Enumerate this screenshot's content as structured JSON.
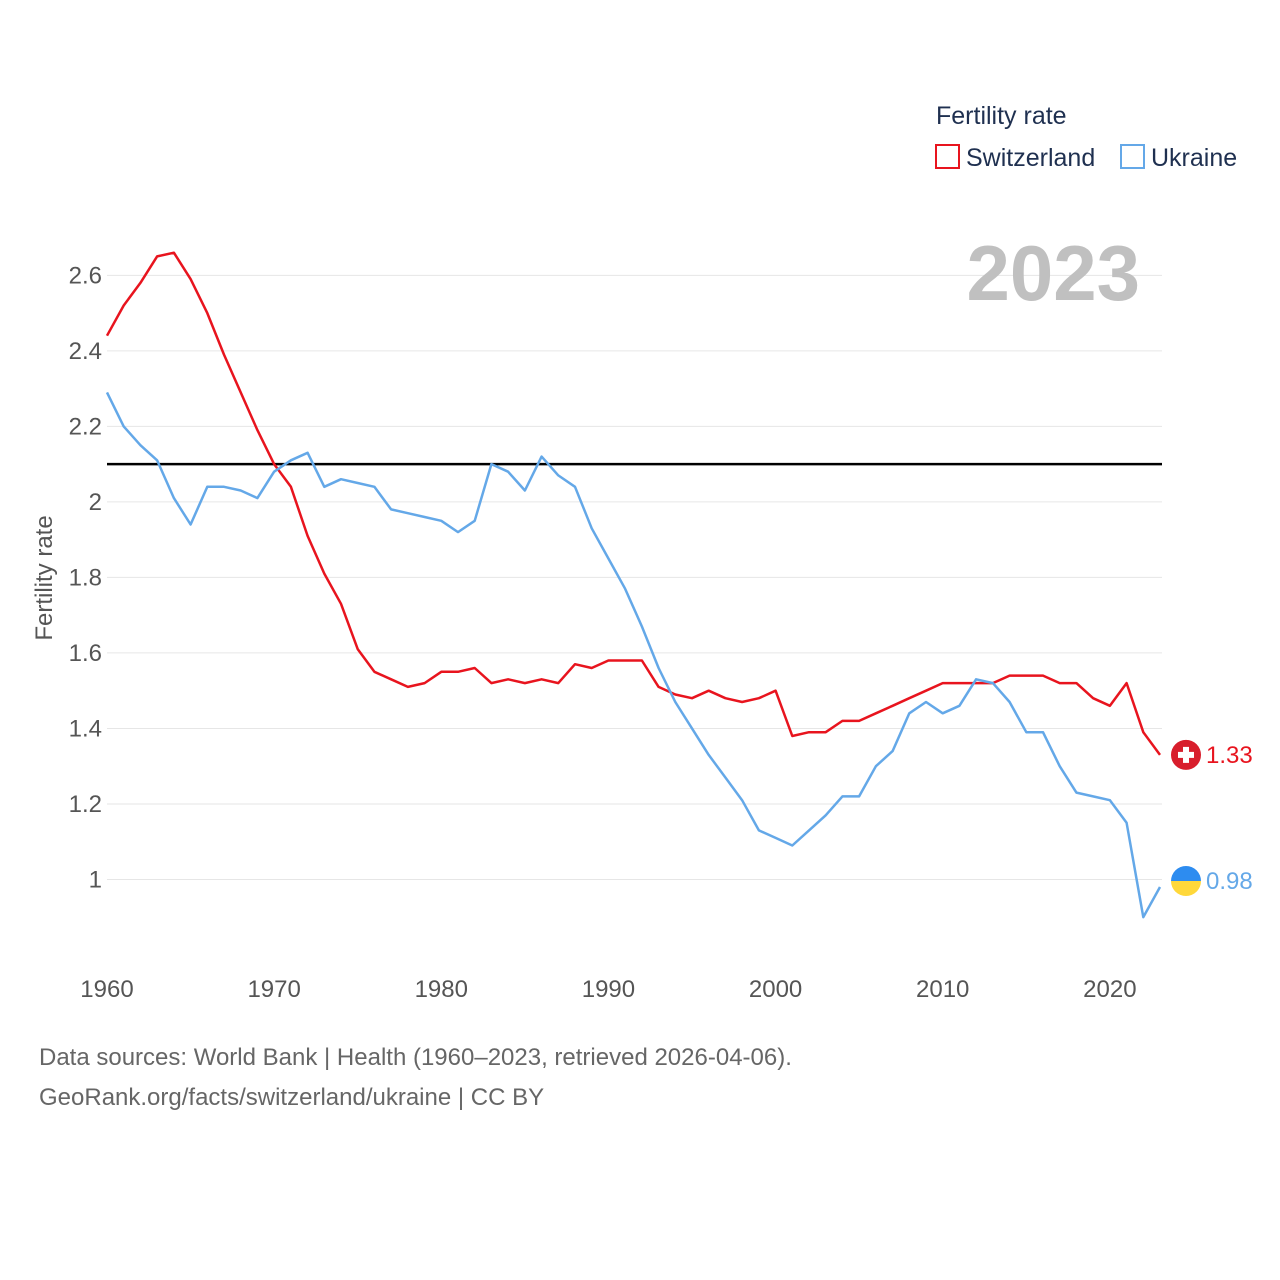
{
  "chart_data": {
    "type": "line",
    "legend_title": "Fertility rate",
    "ylabel": "Fertility rate",
    "year_label": "2023",
    "ylim": [
      0.8,
      2.72
    ],
    "xlim": [
      1960,
      2023
    ],
    "yticks": [
      1,
      1.2,
      1.4,
      1.6,
      1.8,
      2,
      2.2,
      2.4,
      2.6
    ],
    "ytick_labels": [
      "1",
      "1.2",
      "1.4",
      "1.6",
      "1.8",
      "2",
      "2.2",
      "2.4",
      "2.6"
    ],
    "xticks": [
      1960,
      1970,
      1980,
      1990,
      2000,
      2010,
      2020
    ],
    "xtick_labels": [
      "1960",
      "1970",
      "1980",
      "1990",
      "2000",
      "2010",
      "2020"
    ],
    "reference_line": 2.1,
    "x": [
      1960,
      1961,
      1962,
      1963,
      1964,
      1965,
      1966,
      1967,
      1968,
      1969,
      1970,
      1971,
      1972,
      1973,
      1974,
      1975,
      1976,
      1977,
      1978,
      1979,
      1980,
      1981,
      1982,
      1983,
      1984,
      1985,
      1986,
      1987,
      1988,
      1989,
      1990,
      1991,
      1992,
      1993,
      1994,
      1995,
      1996,
      1997,
      1998,
      1999,
      2000,
      2001,
      2002,
      2003,
      2004,
      2005,
      2006,
      2007,
      2008,
      2009,
      2010,
      2011,
      2012,
      2013,
      2014,
      2015,
      2016,
      2017,
      2018,
      2019,
      2020,
      2021,
      2022,
      2023
    ],
    "series": [
      {
        "name": "Switzerland",
        "color": "#e8141e",
        "end_value_label": "1.33",
        "values": [
          2.44,
          2.52,
          2.58,
          2.65,
          2.66,
          2.59,
          2.5,
          2.39,
          2.29,
          2.19,
          2.1,
          2.04,
          1.91,
          1.81,
          1.73,
          1.61,
          1.55,
          1.53,
          1.51,
          1.52,
          1.55,
          1.55,
          1.56,
          1.52,
          1.53,
          1.52,
          1.53,
          1.52,
          1.57,
          1.56,
          1.58,
          1.58,
          1.58,
          1.51,
          1.49,
          1.48,
          1.5,
          1.48,
          1.47,
          1.48,
          1.5,
          1.38,
          1.39,
          1.39,
          1.42,
          1.42,
          1.44,
          1.46,
          1.48,
          1.5,
          1.52,
          1.52,
          1.52,
          1.52,
          1.54,
          1.54,
          1.54,
          1.52,
          1.52,
          1.48,
          1.46,
          1.52,
          1.39,
          1.33
        ]
      },
      {
        "name": "Ukraine",
        "color": "#64a8e8",
        "end_value_label": "0.98",
        "values": [
          2.29,
          2.2,
          2.15,
          2.11,
          2.01,
          1.94,
          2.04,
          2.04,
          2.03,
          2.01,
          2.08,
          2.11,
          2.13,
          2.04,
          2.06,
          2.05,
          2.04,
          1.98,
          1.97,
          1.96,
          1.95,
          1.92,
          1.95,
          2.1,
          2.08,
          2.03,
          2.12,
          2.07,
          2.04,
          1.93,
          1.85,
          1.77,
          1.67,
          1.56,
          1.47,
          1.4,
          1.33,
          1.27,
          1.21,
          1.13,
          1.11,
          1.09,
          1.13,
          1.17,
          1.22,
          1.22,
          1.3,
          1.34,
          1.44,
          1.47,
          1.44,
          1.46,
          1.53,
          1.52,
          1.47,
          1.39,
          1.39,
          1.3,
          1.23,
          1.22,
          1.21,
          1.15,
          0.9,
          0.98
        ]
      }
    ]
  },
  "footer": {
    "line1": "Data sources: World Bank | Health (1960–2023, retrieved 2026-04-06).",
    "line2": "GeoRank.org/facts/switzerland/ukraine | CC BY"
  }
}
